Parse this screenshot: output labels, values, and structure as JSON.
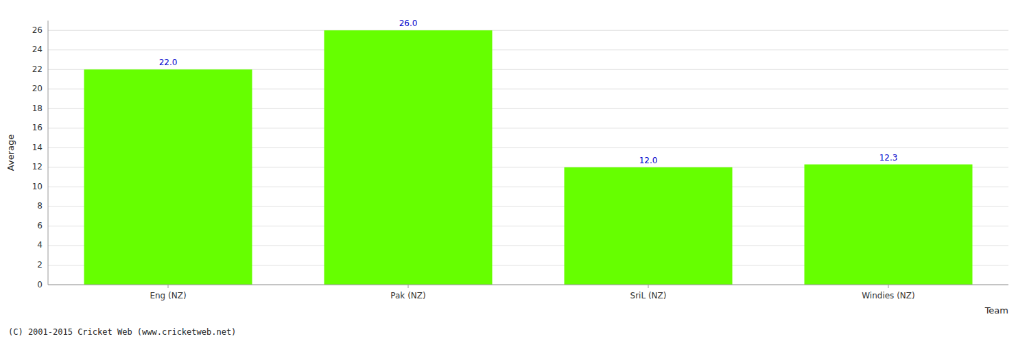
{
  "chart_data": {
    "type": "bar",
    "categories": [
      "Eng (NZ)",
      "Pak (NZ)",
      "SriL (NZ)",
      "Windies (NZ)"
    ],
    "values": [
      22.0,
      26.0,
      12.0,
      12.3
    ],
    "value_labels": [
      "22.0",
      "26.0",
      "12.0",
      "12.3"
    ],
    "color": "#66ff00",
    "xlabel": "Team",
    "ylabel": "Average",
    "ylim": [
      0,
      27
    ],
    "yticks": [
      0,
      2,
      4,
      6,
      8,
      10,
      12,
      14,
      16,
      18,
      20,
      22,
      24,
      26
    ],
    "grid": true,
    "data_labels": true,
    "footer": "(C) 2001-2015 Cricket Web (www.cricketweb.net)"
  }
}
